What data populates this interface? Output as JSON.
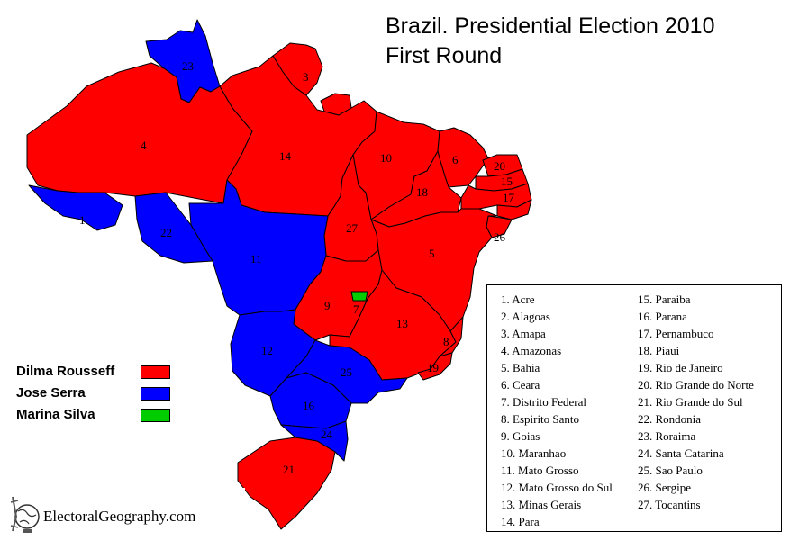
{
  "title_line1": "Brazil. Presidential Election 2010",
  "title_line2": "First Round",
  "colors": {
    "rousseff": "#ff0000",
    "serra": "#0000ff",
    "silva": "#00cc00",
    "border": "#000000"
  },
  "legend": [
    {
      "name": "Dilma Rousseff",
      "color": "#ff0000"
    },
    {
      "name": "Jose Serra",
      "color": "#0000ff"
    },
    {
      "name": "Marina Silva",
      "color": "#00cc00"
    }
  ],
  "states": [
    {
      "num": "1",
      "name": "Acre",
      "winner": "serra"
    },
    {
      "num": "2",
      "name": "Alagoas",
      "winner": "rousseff"
    },
    {
      "num": "3",
      "name": "Amapa",
      "winner": "rousseff"
    },
    {
      "num": "4",
      "name": "Amazonas",
      "winner": "rousseff"
    },
    {
      "num": "5",
      "name": "Bahia",
      "winner": "rousseff"
    },
    {
      "num": "6",
      "name": "Ceara",
      "winner": "rousseff"
    },
    {
      "num": "7",
      "name": "Distrito Federal",
      "winner": "silva"
    },
    {
      "num": "8",
      "name": "Espirito Santo",
      "winner": "rousseff"
    },
    {
      "num": "9",
      "name": "Goias",
      "winner": "rousseff"
    },
    {
      "num": "10",
      "name": "Maranhao",
      "winner": "rousseff"
    },
    {
      "num": "11",
      "name": "Mato Grosso",
      "winner": "serra"
    },
    {
      "num": "12",
      "name": "Mato Grosso do Sul",
      "winner": "serra"
    },
    {
      "num": "13",
      "name": "Minas Gerais",
      "winner": "rousseff"
    },
    {
      "num": "14",
      "name": "Para",
      "winner": "rousseff"
    },
    {
      "num": "15",
      "name": "Paraiba",
      "winner": "rousseff"
    },
    {
      "num": "16",
      "name": "Parana",
      "winner": "serra"
    },
    {
      "num": "17",
      "name": "Pernambuco",
      "winner": "rousseff"
    },
    {
      "num": "18",
      "name": "Piaui",
      "winner": "rousseff"
    },
    {
      "num": "19",
      "name": "Rio de Janeiro",
      "winner": "rousseff"
    },
    {
      "num": "20",
      "name": "Rio Grande do Norte",
      "winner": "rousseff"
    },
    {
      "num": "21",
      "name": "Rio Grande do Sul",
      "winner": "rousseff"
    },
    {
      "num": "22",
      "name": "Rondonia",
      "winner": "serra"
    },
    {
      "num": "23",
      "name": "Roraima",
      "winner": "serra"
    },
    {
      "num": "24",
      "name": "Santa Catarina",
      "winner": "serra"
    },
    {
      "num": "25",
      "name": "Sao Paulo",
      "winner": "serra"
    },
    {
      "num": "26",
      "name": "Sergipe",
      "winner": "rousseff"
    },
    {
      "num": "27",
      "name": "Tocantins",
      "winner": "rousseff"
    }
  ],
  "logo": {
    "text": "ElectoralGeography.com",
    "icon": "globe-icon"
  }
}
